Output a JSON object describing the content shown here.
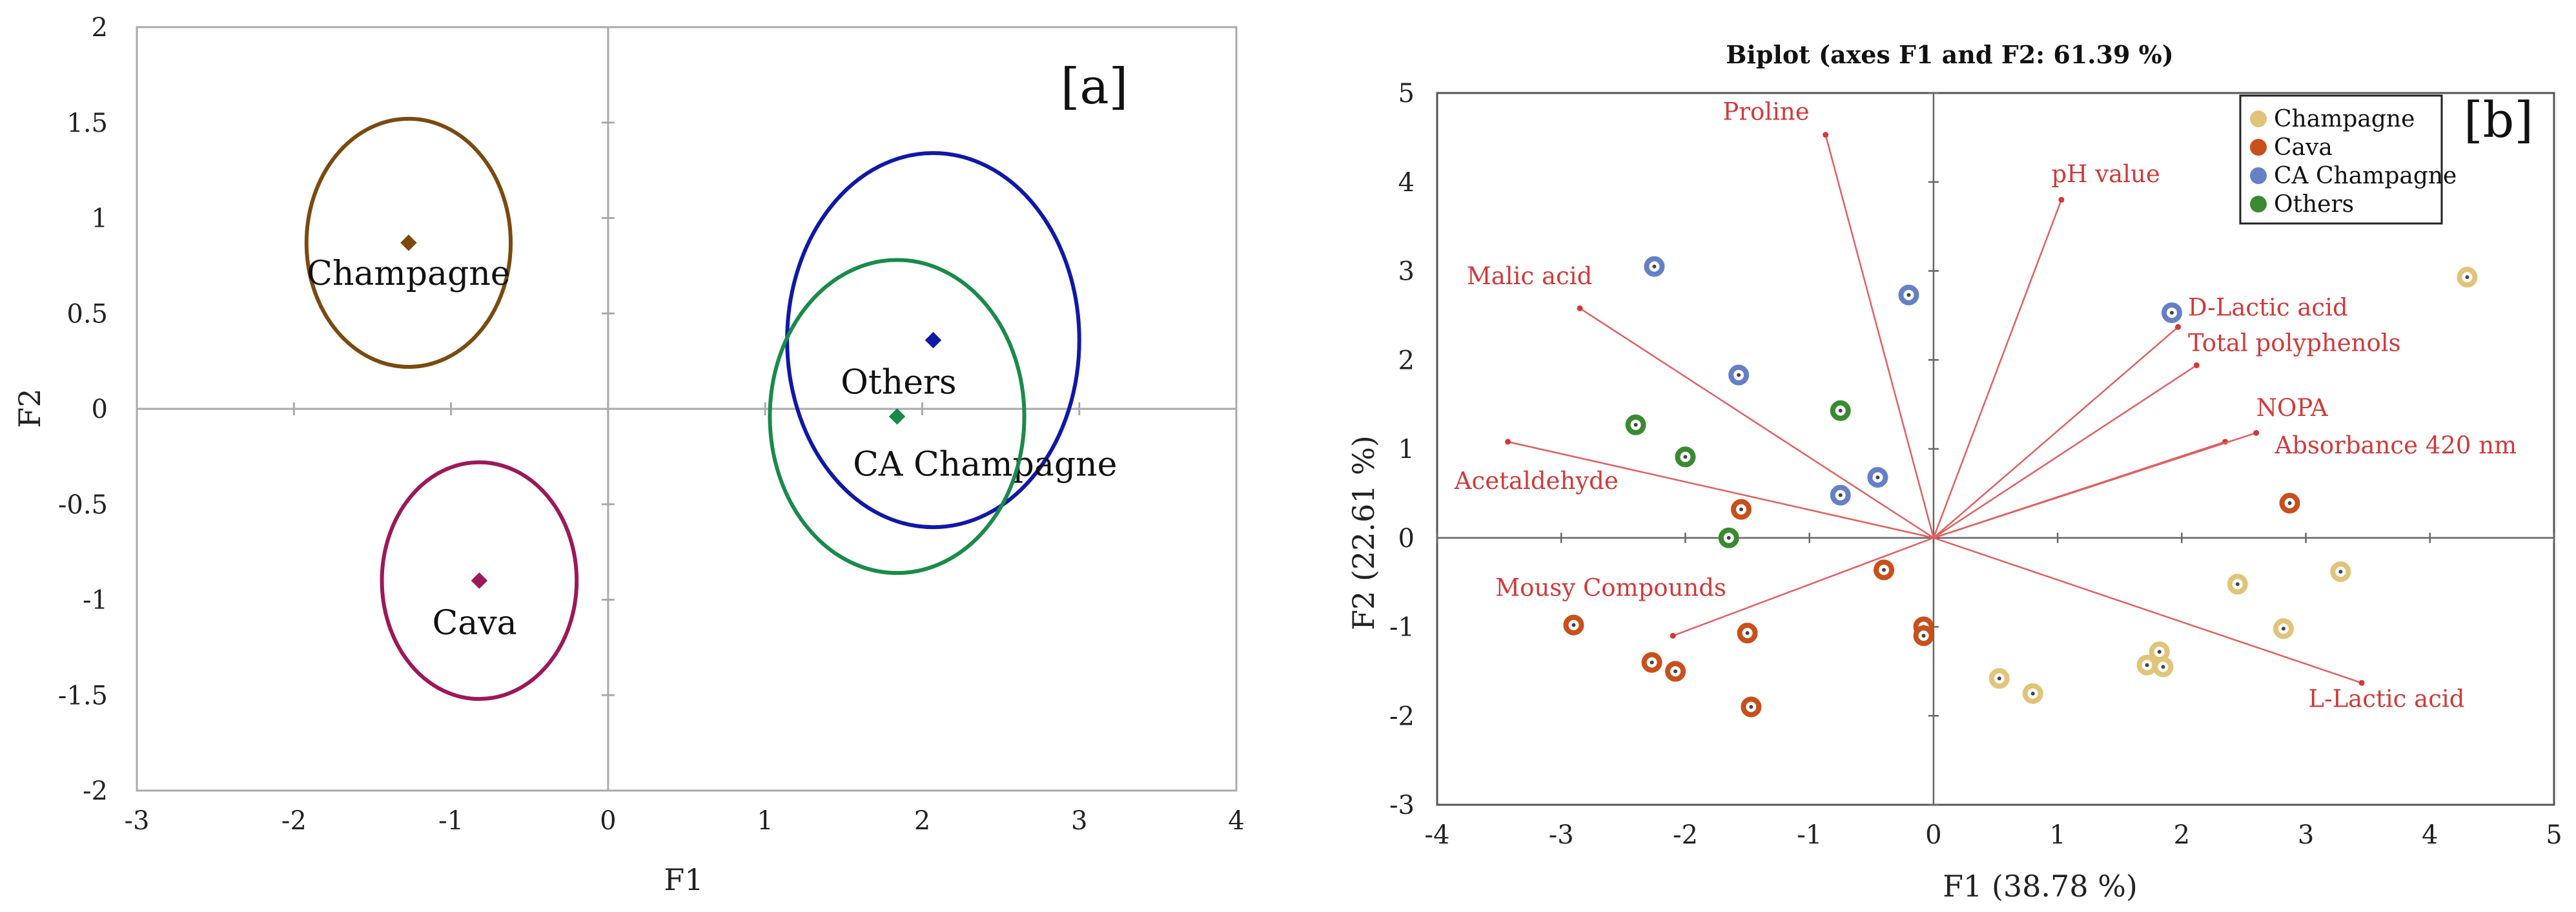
{
  "chart_data": [
    {
      "type": "scatter",
      "panel_label": "[a]",
      "xlabel": "F1",
      "ylabel": "F2",
      "xlim": [
        -3,
        4
      ],
      "ylim": [
        -2,
        2
      ],
      "xticks": [
        -3,
        -2,
        -1,
        0,
        1,
        2,
        3,
        4
      ],
      "yticks": [
        -2,
        -1.5,
        -1,
        -0.5,
        0,
        0.5,
        1,
        1.5,
        2
      ],
      "groups": [
        {
          "name": "Champagne",
          "color": "#7a4a10",
          "centroid": [
            -1.27,
            0.87
          ],
          "ellipse_rx": 0.65,
          "ellipse_ry": 0.65,
          "label_pos": [
            -1.27,
            0.71
          ]
        },
        {
          "name": "Cava",
          "color": "#9c1858",
          "centroid": [
            -0.82,
            -0.9
          ],
          "ellipse_rx": 0.62,
          "ellipse_ry": 0.62,
          "label_pos": [
            -0.85,
            -1.12
          ]
        },
        {
          "name": "CA Champagne",
          "color": "#1018a8",
          "centroid": [
            2.07,
            0.36
          ],
          "ellipse_rx": 0.93,
          "ellipse_ry": 0.98,
          "label_pos": [
            2.4,
            -0.29
          ]
        },
        {
          "name": "Others",
          "color": "#1a8a4a",
          "centroid": [
            1.84,
            -0.04
          ],
          "ellipse_rx": 0.81,
          "ellipse_ry": 0.82,
          "label_pos": [
            1.85,
            0.14
          ]
        }
      ]
    },
    {
      "type": "biplot",
      "panel_label": "[b]",
      "title": "Biplot (axes F1 and F2: 61.39 %)",
      "xlabel": "F1 (38.78 %)",
      "ylabel": "F2 (22.61 %)",
      "xlim": [
        -4,
        5
      ],
      "ylim": [
        -3,
        5
      ],
      "xticks": [
        -4,
        -3,
        -2,
        -1,
        0,
        1,
        2,
        3,
        4,
        5
      ],
      "yticks": [
        -3,
        -2,
        -1,
        0,
        1,
        2,
        3,
        4,
        5
      ],
      "legend": [
        {
          "name": "Champagne",
          "color": "#e0c47a"
        },
        {
          "name": "Cava",
          "color": "#c8501c"
        },
        {
          "name": "CA Champagne",
          "color": "#6680c6"
        },
        {
          "name": "Others",
          "color": "#3a8a30"
        }
      ],
      "legend_position": "top-right",
      "variables": [
        {
          "name": "Proline",
          "x": -0.87,
          "y": 4.53,
          "label_x": -1.0,
          "label_y": 4.7,
          "anchor": "end"
        },
        {
          "name": "pH value",
          "x": 1.03,
          "y": 3.8,
          "label_x": 0.95,
          "label_y": 4.0,
          "anchor": "start"
        },
        {
          "name": "Malic acid",
          "x": -2.85,
          "y": 2.58,
          "label_x": -2.75,
          "label_y": 2.85,
          "anchor": "end"
        },
        {
          "name": "D-Lactic acid",
          "x": 1.97,
          "y": 2.37,
          "label_x": 2.05,
          "label_y": 2.5,
          "anchor": "start"
        },
        {
          "name": "Total polyphenols",
          "x": 2.12,
          "y": 1.94,
          "label_x": 2.05,
          "label_y": 2.1,
          "anchor": "start"
        },
        {
          "name": "NOPA",
          "x": 2.35,
          "y": 1.08,
          "label_x": 2.6,
          "label_y": 1.37,
          "anchor": "start"
        },
        {
          "name": "Absorbance 420 nm",
          "x": 2.6,
          "y": 1.18,
          "label_x": 2.75,
          "label_y": 0.95,
          "anchor": "start"
        },
        {
          "name": "Acetaldehyde",
          "x": -3.43,
          "y": 1.08,
          "label_x": -3.2,
          "label_y": 0.55,
          "anchor": "middle"
        },
        {
          "name": "Mousy Compounds",
          "x": -2.1,
          "y": -1.1,
          "label_x": -2.6,
          "label_y": -0.65,
          "anchor": "middle"
        },
        {
          "name": "L-Lactic acid",
          "x": 3.45,
          "y": -1.63,
          "label_x": 3.65,
          "label_y": -1.9,
          "anchor": "middle"
        }
      ],
      "points": [
        {
          "group": "Champagne",
          "x": 4.3,
          "y": 2.93
        },
        {
          "group": "Champagne",
          "x": 2.45,
          "y": -0.52
        },
        {
          "group": "Champagne",
          "x": 3.28,
          "y": -0.38
        },
        {
          "group": "Champagne",
          "x": 2.82,
          "y": -1.02
        },
        {
          "group": "Champagne",
          "x": 1.82,
          "y": -1.28
        },
        {
          "group": "Champagne",
          "x": 1.85,
          "y": -1.45
        },
        {
          "group": "Champagne",
          "x": 1.72,
          "y": -1.43
        },
        {
          "group": "Champagne",
          "x": 0.53,
          "y": -1.58
        },
        {
          "group": "Champagne",
          "x": 0.8,
          "y": -1.75
        },
        {
          "group": "Cava",
          "x": 2.87,
          "y": 0.39
        },
        {
          "group": "Cava",
          "x": -1.55,
          "y": 0.32
        },
        {
          "group": "Cava",
          "x": -0.4,
          "y": -0.36
        },
        {
          "group": "Cava",
          "x": -0.08,
          "y": -1.0
        },
        {
          "group": "Cava",
          "x": -0.08,
          "y": -1.1
        },
        {
          "group": "Cava",
          "x": -1.5,
          "y": -1.07
        },
        {
          "group": "Cava",
          "x": -2.9,
          "y": -0.98
        },
        {
          "group": "Cava",
          "x": -2.27,
          "y": -1.4
        },
        {
          "group": "Cava",
          "x": -2.08,
          "y": -1.5
        },
        {
          "group": "Cava",
          "x": -1.47,
          "y": -1.9
        },
        {
          "group": "CA Champagne",
          "x": -2.25,
          "y": 3.05
        },
        {
          "group": "CA Champagne",
          "x": -0.2,
          "y": 2.73
        },
        {
          "group": "CA Champagne",
          "x": 1.92,
          "y": 2.53
        },
        {
          "group": "CA Champagne",
          "x": -1.57,
          "y": 1.83
        },
        {
          "group": "CA Champagne",
          "x": -0.45,
          "y": 0.68
        },
        {
          "group": "CA Champagne",
          "x": -0.75,
          "y": 0.48
        },
        {
          "group": "Others",
          "x": -0.75,
          "y": 1.43
        },
        {
          "group": "Others",
          "x": -2.4,
          "y": 1.27
        },
        {
          "group": "Others",
          "x": -2.0,
          "y": 0.91
        },
        {
          "group": "Others",
          "x": -1.65,
          "y": 0.0
        }
      ]
    }
  ]
}
